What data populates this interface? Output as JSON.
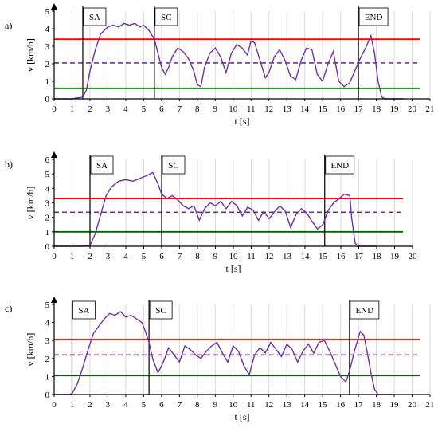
{
  "figure": {
    "panels": [
      "a)",
      "b)",
      "c)"
    ]
  },
  "colors": {
    "velocity": "#7030a0",
    "upper": "#ff0000",
    "mean": "#7030a0",
    "lower": "#006400",
    "grid": "#d9d9d9",
    "axis": "#000000"
  },
  "chart_data": [
    {
      "type": "line",
      "panel_label": "a)",
      "xlabel": "t [s]",
      "ylabel": "v [km/h]",
      "xlim": [
        0,
        21
      ],
      "ylim": [
        0,
        5
      ],
      "xticks": [
        "0",
        "1",
        "2",
        "3",
        "4",
        "5",
        "6",
        "7",
        "8",
        "9",
        "10",
        "11",
        "12",
        "13",
        "14",
        "15",
        "16",
        "17",
        "18",
        "19",
        "20",
        "21"
      ],
      "yticks": [
        "0",
        "1",
        "2",
        "3",
        "4",
        "5"
      ],
      "grid": "vertical",
      "hlines": {
        "upper": 3.4,
        "mean": 2.05,
        "lower": 0.6
      },
      "markers": [
        {
          "label": "SA",
          "x": 1.6
        },
        {
          "label": "SC",
          "x": 5.6
        },
        {
          "label": "END",
          "x": 17.0
        }
      ],
      "series": [
        {
          "x": [
            0,
            1.0,
            1.6,
            1.8,
            2.0,
            2.3,
            2.6,
            3.0,
            3.3,
            3.6,
            3.9,
            4.2,
            4.5,
            4.8,
            5.0,
            5.3,
            5.6,
            5.8,
            6.0,
            6.2,
            6.4,
            6.6,
            6.9,
            7.2,
            7.5,
            7.8,
            8.0,
            8.2,
            8.4,
            8.7,
            9.0,
            9.3,
            9.6,
            9.9,
            10.2,
            10.5,
            10.8,
            11.0,
            11.2,
            11.5,
            11.8,
            12.0,
            12.3,
            12.6,
            12.9,
            13.2,
            13.5,
            13.8,
            14.1,
            14.4,
            14.7,
            15.0,
            15.3,
            15.6,
            15.9,
            16.2,
            16.5,
            16.8,
            17.1,
            17.4,
            17.7,
            17.9,
            18.1,
            18.3,
            18.5,
            19.0,
            19.5
          ],
          "values": [
            0,
            0,
            0.1,
            0.5,
            1.6,
            2.8,
            3.7,
            4.1,
            4.2,
            4.1,
            4.3,
            4.2,
            4.3,
            4.1,
            4.2,
            3.9,
            3.4,
            2.6,
            1.8,
            1.4,
            1.8,
            2.4,
            2.9,
            2.7,
            2.3,
            1.6,
            0.8,
            0.7,
            1.8,
            2.6,
            2.9,
            2.4,
            1.5,
            2.6,
            3.1,
            2.9,
            2.5,
            3.3,
            3.2,
            2.2,
            1.2,
            1.5,
            2.4,
            2.8,
            2.2,
            1.3,
            1.1,
            2.2,
            2.9,
            2.8,
            1.4,
            1.0,
            2.0,
            2.7,
            1.0,
            0.7,
            0.9,
            1.6,
            2.3,
            2.9,
            3.6,
            2.6,
            1.0,
            0.1,
            0,
            0,
            0
          ]
        }
      ]
    },
    {
      "type": "line",
      "panel_label": "b)",
      "xlabel": "t [s]",
      "ylabel": "v [km/h]",
      "xlim": [
        0,
        20
      ],
      "ylim": [
        0,
        6
      ],
      "xticks": [
        "0",
        "1",
        "2",
        "3",
        "4",
        "5",
        "6",
        "7",
        "8",
        "9",
        "10",
        "11",
        "12",
        "13",
        "14",
        "15",
        "16",
        "17",
        "18",
        "19",
        "20"
      ],
      "yticks": [
        "0",
        "1",
        "2",
        "3",
        "4",
        "5",
        "6"
      ],
      "grid": "vertical",
      "hlines": {
        "upper": 3.3,
        "mean": 2.35,
        "lower": 1.0
      },
      "markers": [
        {
          "label": "SA",
          "x": 2.0
        },
        {
          "label": "SC",
          "x": 6.0
        },
        {
          "label": "END",
          "x": 15.1
        }
      ],
      "series": [
        {
          "x": [
            0,
            1.5,
            2.0,
            2.3,
            2.6,
            2.9,
            3.2,
            3.6,
            4.0,
            4.4,
            4.8,
            5.2,
            5.5,
            5.8,
            6.0,
            6.3,
            6.6,
            6.9,
            7.2,
            7.5,
            7.8,
            8.1,
            8.4,
            8.7,
            9.0,
            9.3,
            9.6,
            9.9,
            10.2,
            10.5,
            10.8,
            11.1,
            11.4,
            11.7,
            12.0,
            12.3,
            12.6,
            12.9,
            13.2,
            13.5,
            13.8,
            14.1,
            14.4,
            14.7,
            15.0,
            15.3,
            15.6,
            15.9,
            16.2,
            16.5,
            16.6,
            16.8,
            17.0,
            18.0
          ],
          "values": [
            0,
            0,
            0.05,
            0.9,
            2.2,
            3.5,
            4.1,
            4.5,
            4.6,
            4.5,
            4.7,
            4.9,
            5.1,
            4.3,
            3.6,
            3.3,
            3.5,
            3.2,
            2.8,
            2.6,
            2.8,
            1.8,
            2.6,
            3.0,
            2.8,
            3.1,
            2.6,
            3.1,
            2.8,
            2.1,
            2.7,
            2.5,
            1.8,
            2.4,
            1.9,
            2.4,
            2.8,
            2.4,
            1.3,
            2.2,
            2.6,
            2.3,
            1.7,
            1.2,
            1.5,
            2.5,
            3.0,
            3.3,
            3.6,
            3.5,
            2.0,
            0.2,
            0,
            0
          ]
        }
      ]
    },
    {
      "type": "line",
      "panel_label": "c)",
      "xlabel": "t [s]",
      "ylabel": "v [km/h]",
      "xlim": [
        0,
        21
      ],
      "ylim": [
        0,
        5
      ],
      "xticks": [
        "0",
        "1",
        "2",
        "3",
        "4",
        "5",
        "6",
        "7",
        "8",
        "9",
        "10",
        "11",
        "12",
        "13",
        "14",
        "15",
        "16",
        "17",
        "18",
        "19",
        "20",
        "21"
      ],
      "yticks": [
        "0",
        "1",
        "2",
        "3",
        "4",
        "5"
      ],
      "grid": "vertical",
      "hlines": {
        "upper": 3.05,
        "mean": 2.2,
        "lower": 1.05
      },
      "markers": [
        {
          "label": "SA",
          "x": 1.0
        },
        {
          "label": "SC",
          "x": 5.3
        },
        {
          "label": "END",
          "x": 16.5
        }
      ],
      "series": [
        {
          "x": [
            0,
            0.8,
            1.0,
            1.3,
            1.6,
            1.9,
            2.2,
            2.5,
            2.8,
            3.1,
            3.4,
            3.7,
            4.0,
            4.3,
            4.6,
            4.9,
            5.1,
            5.3,
            5.5,
            5.8,
            6.1,
            6.4,
            6.7,
            7.0,
            7.3,
            7.6,
            7.9,
            8.2,
            8.5,
            8.8,
            9.1,
            9.4,
            9.7,
            10.0,
            10.3,
            10.6,
            10.9,
            11.2,
            11.5,
            11.8,
            12.1,
            12.4,
            12.7,
            13.0,
            13.3,
            13.6,
            13.9,
            14.2,
            14.5,
            14.8,
            15.1,
            15.4,
            15.7,
            16.0,
            16.3,
            16.5,
            16.8,
            17.1,
            17.3,
            17.5,
            17.7,
            17.9,
            18.1,
            18.5,
            19.0
          ],
          "values": [
            0,
            0,
            0.05,
            0.6,
            1.5,
            2.5,
            3.4,
            3.8,
            4.2,
            4.5,
            4.4,
            4.6,
            4.3,
            4.4,
            4.2,
            4.0,
            3.5,
            2.9,
            2.0,
            1.2,
            1.8,
            2.6,
            2.2,
            1.8,
            2.7,
            2.5,
            2.2,
            2.0,
            2.4,
            2.7,
            2.9,
            2.3,
            1.8,
            2.7,
            2.4,
            1.6,
            1.1,
            2.2,
            2.6,
            2.3,
            2.9,
            2.5,
            2.1,
            2.8,
            2.5,
            1.8,
            2.4,
            2.8,
            2.3,
            2.9,
            3.0,
            2.4,
            1.7,
            1.0,
            0.7,
            1.3,
            2.5,
            3.5,
            3.3,
            2.3,
            1.2,
            0.3,
            0,
            0,
            0
          ]
        }
      ]
    }
  ]
}
